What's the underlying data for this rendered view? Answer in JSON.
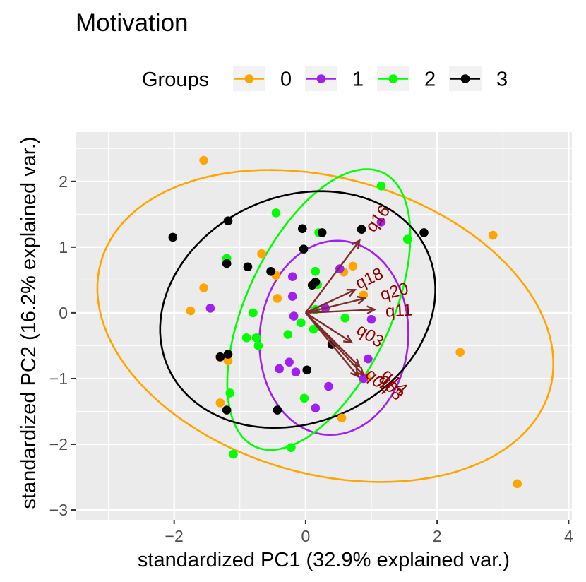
{
  "chart_data": {
    "type": "scatter",
    "title": "Motivation",
    "xlabel": "standardized PC1 (32.9% explained var.)",
    "ylabel": "standardized PC2 (16.2% explained var.)",
    "xlim": [
      -3.5,
      4.05
    ],
    "ylim": [
      -3.15,
      2.75
    ],
    "x_ticks": [
      -2,
      0,
      2,
      4
    ],
    "y_ticks": [
      -3,
      -2,
      -1,
      0,
      1,
      2
    ],
    "x_tick_labels": [
      "−2",
      "0",
      "2",
      "4"
    ],
    "y_tick_labels": [
      "−3",
      "−2",
      "−1",
      "0",
      "1",
      "2"
    ],
    "grid": true,
    "legend": {
      "title": "Groups",
      "position": "top",
      "entries": [
        {
          "label": "0",
          "color": "#FFA500"
        },
        {
          "label": "1",
          "color": "#A020F0"
        },
        {
          "label": "2",
          "color": "#00FF00"
        },
        {
          "label": "3",
          "color": "#000000"
        }
      ]
    },
    "series": [
      {
        "name": "0",
        "color": "#FFA500",
        "points": [
          [
            -1.55,
            2.32
          ],
          [
            -1.55,
            0.38
          ],
          [
            -1.75,
            0.03
          ],
          [
            -0.67,
            0.9
          ],
          [
            -0.45,
            0.57
          ],
          [
            -0.43,
            0.22
          ],
          [
            -1.3,
            -0.68
          ],
          [
            -1.18,
            -0.73
          ],
          [
            -1.3,
            -1.37
          ],
          [
            0.58,
            0.62
          ],
          [
            0.72,
            0.71
          ],
          [
            0.88,
            0.27
          ],
          [
            0.92,
            -0.98
          ],
          [
            0.55,
            -1.6
          ],
          [
            2.85,
            1.18
          ],
          [
            2.35,
            -0.6
          ],
          [
            3.22,
            -2.6
          ]
        ]
      },
      {
        "name": "1",
        "color": "#A020F0",
        "points": [
          [
            -1.45,
            0.07
          ],
          [
            -0.2,
            0.55
          ],
          [
            -0.2,
            0.25
          ],
          [
            -0.18,
            -0.05
          ],
          [
            -0.4,
            -0.85
          ],
          [
            -0.25,
            -0.75
          ],
          [
            -0.15,
            -0.9
          ],
          [
            0.3,
            0.07
          ],
          [
            0.52,
            0.67
          ],
          [
            0.95,
            -0.7
          ],
          [
            1.0,
            -0.1
          ],
          [
            1.15,
            1.38
          ],
          [
            0.35,
            -1.12
          ],
          [
            0.15,
            -1.45
          ],
          [
            0.88,
            -1.0
          ]
        ]
      },
      {
        "name": "2",
        "color": "#00FF00",
        "points": [
          [
            -0.45,
            1.52
          ],
          [
            -0.8,
            0.0
          ],
          [
            -1.2,
            0.83
          ],
          [
            -0.9,
            -0.38
          ],
          [
            -0.75,
            -0.38
          ],
          [
            -0.72,
            -0.5
          ],
          [
            -0.27,
            -0.33
          ],
          [
            -0.07,
            -0.15
          ],
          [
            0.12,
            -0.25
          ],
          [
            0.15,
            0.63
          ],
          [
            0.18,
            0.43
          ],
          [
            0.2,
            1.22
          ],
          [
            0.6,
            -0.08
          ],
          [
            1.15,
            1.93
          ],
          [
            1.55,
            1.12
          ],
          [
            -1.15,
            -1.22
          ],
          [
            -0.02,
            -1.3
          ],
          [
            -0.22,
            -2.05
          ],
          [
            -1.1,
            -2.15
          ],
          [
            0.15,
            0.05
          ]
        ]
      },
      {
        "name": "3",
        "color": "#000000",
        "points": [
          [
            -2.02,
            1.15
          ],
          [
            -1.18,
            1.4
          ],
          [
            -1.2,
            0.75
          ],
          [
            -0.88,
            0.7
          ],
          [
            -0.53,
            0.63
          ],
          [
            -0.05,
            1.28
          ],
          [
            -0.03,
            0.97
          ],
          [
            0.1,
            0.42
          ],
          [
            0.15,
            0.47
          ],
          [
            0.25,
            1.22
          ],
          [
            0.85,
            1.27
          ],
          [
            1.8,
            1.22
          ],
          [
            0.4,
            -0.48
          ],
          [
            -1.3,
            -0.67
          ],
          [
            -1.18,
            -0.63
          ],
          [
            -1.2,
            -1.48
          ],
          [
            -0.43,
            -1.48
          ],
          [
            0.02,
            -0.87
          ]
        ]
      }
    ],
    "ellipses": [
      {
        "group": "0",
        "color": "#FFA500",
        "cx": 0.3,
        "cy": -0.2,
        "rx": 3.55,
        "ry": 2.25,
        "angle_deg": -16
      },
      {
        "group": "1",
        "color": "#A020F0",
        "cx": 0.43,
        "cy": -0.38,
        "rx": 1.48,
        "ry": 1.13,
        "angle_deg": 85
      },
      {
        "group": "2",
        "color": "#00FF00",
        "cx": 0.2,
        "cy": 0.05,
        "rx": 2.3,
        "ry": 1.1,
        "angle_deg": 65
      },
      {
        "group": "3",
        "color": "#000000",
        "cx": -0.12,
        "cy": 0.05,
        "rx": 2.16,
        "ry": 1.72,
        "angle_deg": 24
      }
    ],
    "arrows": {
      "color": "#7F2B2B",
      "label_color": "#8B0000",
      "items": [
        {
          "label": "q16",
          "x": 0.82,
          "y": 1.1
        },
        {
          "label": "q18",
          "x": 0.75,
          "y": 0.35
        },
        {
          "label": "q20",
          "x": 0.9,
          "y": 0.22
        },
        {
          "label": "q11",
          "x": 1.05,
          "y": 0.05
        },
        {
          "label": "q03",
          "x": 0.7,
          "y": -0.45
        },
        {
          "label": "q14",
          "x": 0.82,
          "y": -0.82
        },
        {
          "label": "q04",
          "x": 0.88,
          "y": -0.95
        },
        {
          "label": "q08",
          "x": 0.8,
          "y": -0.97
        }
      ]
    },
    "arrow_label_positions": [
      {
        "label": "q16",
        "x": 1.1,
        "y": 1.43,
        "angle_deg": -53
      },
      {
        "label": "q18",
        "x": 0.97,
        "y": 0.52,
        "angle_deg": -25
      },
      {
        "label": "q20",
        "x": 1.35,
        "y": 0.32,
        "angle_deg": -14
      },
      {
        "label": "q11",
        "x": 1.42,
        "y": 0.03,
        "angle_deg": -3
      },
      {
        "label": "q03",
        "x": 0.98,
        "y": -0.35,
        "angle_deg": 33
      },
      {
        "label": "q14",
        "x": 1.35,
        "y": -1.05,
        "angle_deg": 45
      },
      {
        "label": "q04",
        "x": 1.1,
        "y": -1.05,
        "angle_deg": 47
      },
      {
        "label": "q08",
        "x": 1.3,
        "y": -1.13,
        "angle_deg": 50
      }
    ]
  }
}
